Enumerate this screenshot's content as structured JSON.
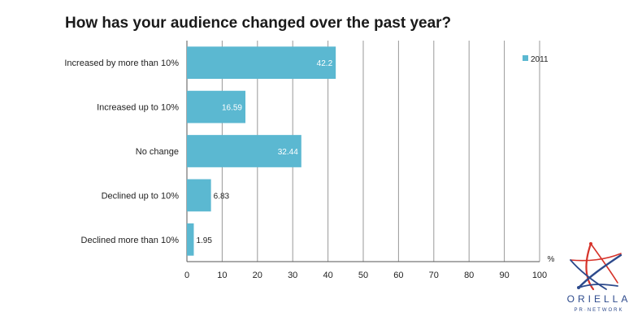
{
  "chart_data": {
    "type": "bar",
    "orientation": "horizontal",
    "title": "How has your audience changed over the past year?",
    "categories": [
      "Increased by more than 10%",
      "Increased up to 10%",
      "No change",
      "Declined up to 10%",
      "Declined more than 10%"
    ],
    "series": [
      {
        "name": "2011",
        "values": [
          42.2,
          16.59,
          32.44,
          6.83,
          1.95
        ],
        "color": "#5bb8d1"
      }
    ],
    "value_labels": [
      "42.2",
      "16.59",
      "32.44",
      "6.83",
      "1.95"
    ],
    "xlim": [
      0,
      100
    ],
    "xticks": [
      0,
      10,
      20,
      30,
      40,
      50,
      60,
      70,
      80,
      90,
      100
    ],
    "xlabel": "%",
    "ylabel": "",
    "grid": true,
    "legend_position": "top-right"
  },
  "branding": {
    "logo_name": "ORIELLA",
    "logo_sub": "PR·NETWORK",
    "colors": {
      "red": "#d6332a",
      "blue": "#2d4a8c"
    }
  }
}
